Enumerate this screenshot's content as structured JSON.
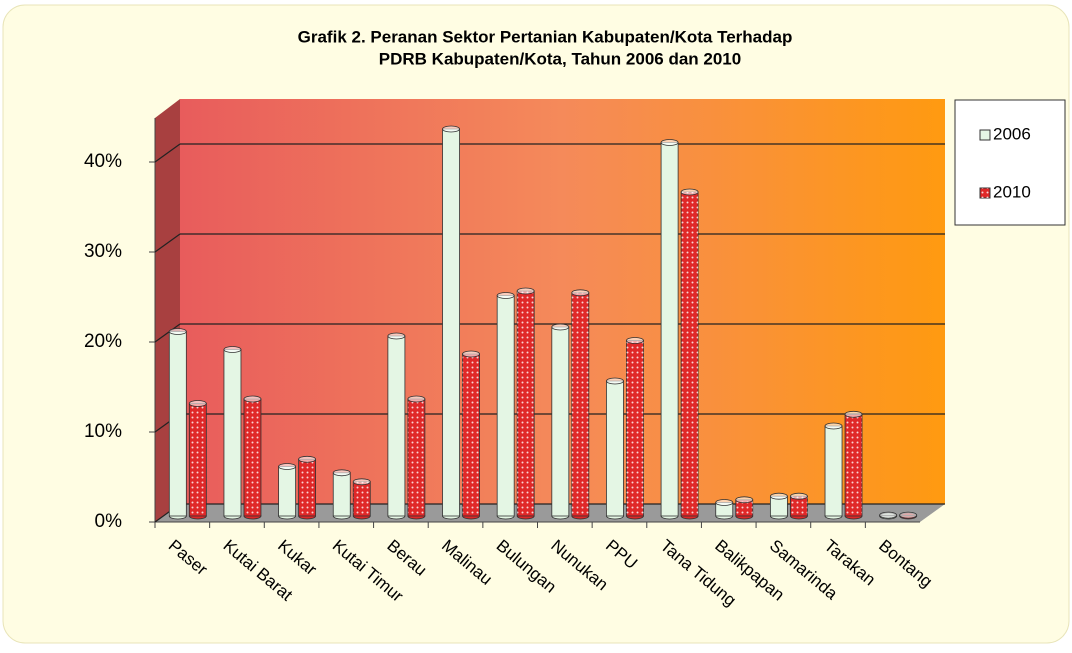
{
  "chart_data": {
    "type": "bar3d",
    "title": [
      "Grafik 2. Peranan  Sektor  Pertanian  Kabupaten/Kota  Terhadap",
      "PDRB  Kabupaten/Kota,  Tahun 2006  dan 2010"
    ],
    "categories": [
      "Paser",
      "Kutai Barat",
      "Kukar",
      "Kutai Timur",
      "Berau",
      "Malinau",
      "Bulungan",
      "Nunukan",
      "PPU",
      "Tana Tidung",
      "Balikpapan",
      "Samarinda",
      "Tarakan",
      "Bontang"
    ],
    "series": [
      {
        "name": "2006",
        "color": "#e4f6e4",
        "values": [
          20.5,
          18.5,
          5.5,
          4.8,
          20,
          43,
          24.5,
          21,
          15,
          41.5,
          1.5,
          2.2,
          10,
          0.1
        ]
      },
      {
        "name": "2010",
        "color": "#e02828",
        "pattern": "dots",
        "values": [
          12.5,
          13,
          6.3,
          3.8,
          13,
          18,
          25,
          24.8,
          19.5,
          36,
          1.8,
          2.2,
          11.3,
          0.1
        ]
      }
    ],
    "ylim": [
      0,
      45
    ],
    "yticks": [
      {
        "value": 0,
        "label": "0%"
      },
      {
        "value": 10,
        "label": "10%"
      },
      {
        "value": 20,
        "label": "20%"
      },
      {
        "value": 30,
        "label": "30%"
      },
      {
        "value": 40,
        "label": "40%"
      }
    ],
    "grid": true,
    "legend": "right"
  }
}
